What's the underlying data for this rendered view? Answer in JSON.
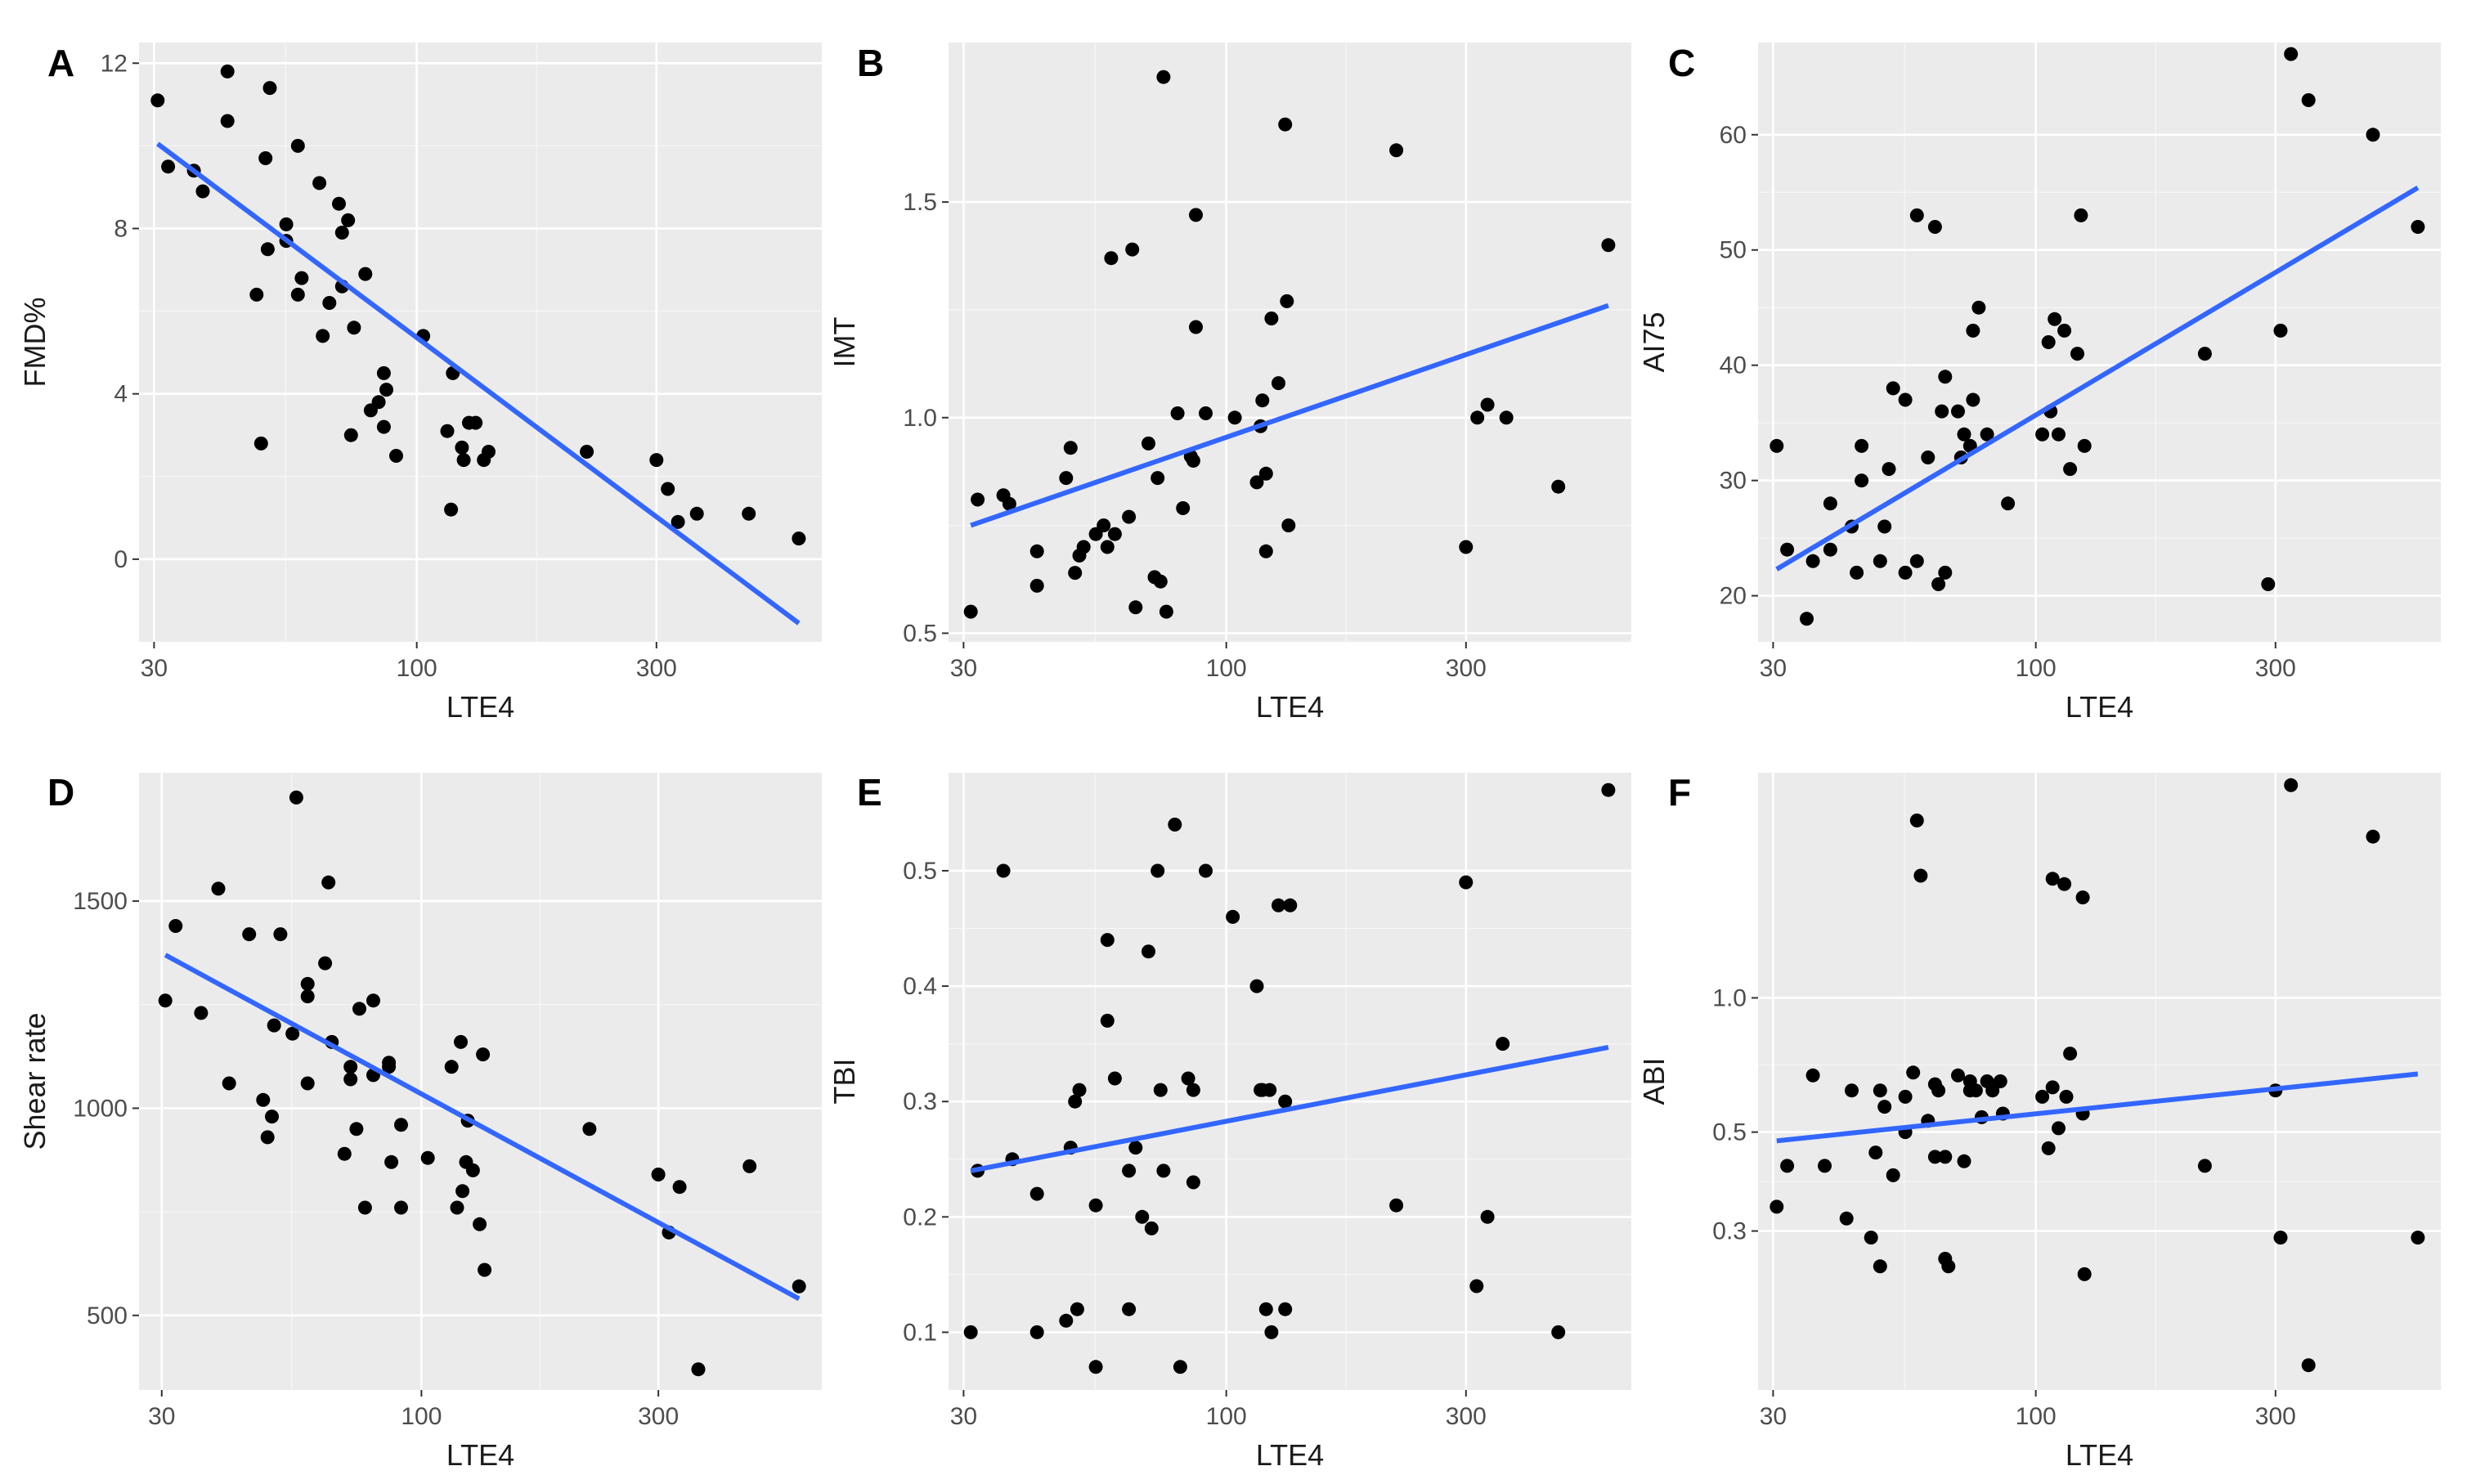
{
  "figure": {
    "background": "#ffffff",
    "panel_bg": "#ebebeb",
    "grid_major": "#ffffff",
    "point_color": "#000000",
    "line_color": "#3366ff"
  },
  "chart_data": [
    {
      "type": "scatter",
      "panel": "A",
      "x_scale": "log10",
      "xlabel": "LTE4",
      "ylabel": "FMD%",
      "xlim": [
        28,
        640
      ],
      "ylim": [
        -2,
        12.5
      ],
      "xticks": [
        30,
        100,
        300
      ],
      "xtick_labels": [
        "30",
        "100",
        "300"
      ],
      "yticks": [
        0,
        4,
        8,
        12
      ],
      "ytick_labels": [
        "0",
        "4",
        "8",
        "12"
      ],
      "x_minor": [
        54.8,
        173.2
      ],
      "points": [
        [
          30.5,
          11.1
        ],
        [
          32,
          9.5
        ],
        [
          36,
          9.4
        ],
        [
          37.5,
          8.9
        ],
        [
          42,
          11.8
        ],
        [
          42,
          10.6
        ],
        [
          48,
          6.4
        ],
        [
          49,
          2.8
        ],
        [
          50,
          9.7
        ],
        [
          50.5,
          7.5
        ],
        [
          51,
          11.4
        ],
        [
          55,
          8.1
        ],
        [
          55,
          7.7
        ],
        [
          58,
          10.0
        ],
        [
          58,
          6.4
        ],
        [
          59,
          6.8
        ],
        [
          64,
          9.1
        ],
        [
          65,
          5.4
        ],
        [
          67,
          6.2
        ],
        [
          70,
          8.6
        ],
        [
          71,
          7.9
        ],
        [
          71,
          6.6
        ],
        [
          73,
          8.2
        ],
        [
          74,
          3.0
        ],
        [
          75,
          5.6
        ],
        [
          79,
          6.9
        ],
        [
          81,
          3.6
        ],
        [
          84,
          3.8
        ],
        [
          86,
          4.5
        ],
        [
          86,
          3.2
        ],
        [
          87,
          4.1
        ],
        [
          91,
          2.5
        ],
        [
          103,
          5.4
        ],
        [
          115,
          3.1
        ],
        [
          118,
          4.5
        ],
        [
          117,
          1.2
        ],
        [
          123,
          2.7
        ],
        [
          124,
          2.4
        ],
        [
          127,
          3.3
        ],
        [
          131,
          3.3
        ],
        [
          136,
          2.4
        ],
        [
          139,
          2.6
        ],
        [
          218,
          2.6
        ],
        [
          300,
          2.4
        ],
        [
          316,
          1.7
        ],
        [
          331,
          0.9
        ],
        [
          361,
          1.1
        ],
        [
          458,
          1.1
        ],
        [
          576,
          0.5
        ]
      ],
      "trend": [
        [
          30.5,
          10.05
        ],
        [
          576,
          -1.55
        ]
      ]
    },
    {
      "type": "scatter",
      "panel": "B",
      "x_scale": "log10",
      "xlabel": "LTE4",
      "ylabel": "IMT",
      "xlim": [
        28,
        640
      ],
      "ylim": [
        0.48,
        1.87
      ],
      "xticks": [
        30,
        100,
        300
      ],
      "xtick_labels": [
        "30",
        "100",
        "300"
      ],
      "yticks": [
        0.5,
        1.0,
        1.5
      ],
      "ytick_labels": [
        "0.5",
        "1.0",
        "1.5"
      ],
      "x_minor": [
        54.8,
        173.2
      ],
      "points": [
        [
          31,
          0.55
        ],
        [
          32,
          0.81
        ],
        [
          36,
          0.82
        ],
        [
          37,
          0.8
        ],
        [
          42,
          0.69
        ],
        [
          42,
          0.61
        ],
        [
          48,
          0.86
        ],
        [
          49,
          0.93
        ],
        [
          50,
          0.64
        ],
        [
          51,
          0.68
        ],
        [
          52,
          0.7
        ],
        [
          55,
          0.73
        ],
        [
          57,
          0.75
        ],
        [
          58,
          0.7
        ],
        [
          59,
          1.37
        ],
        [
          60,
          0.73
        ],
        [
          64,
          0.77
        ],
        [
          65,
          1.39
        ],
        [
          66,
          0.56
        ],
        [
          70,
          0.94
        ],
        [
          72,
          0.63
        ],
        [
          73,
          0.86
        ],
        [
          74,
          0.62
        ],
        [
          75,
          1.79
        ],
        [
          76,
          0.55
        ],
        [
          80,
          1.01
        ],
        [
          82,
          0.79
        ],
        [
          85,
          0.91
        ],
        [
          86,
          0.9
        ],
        [
          87,
          1.21
        ],
        [
          87,
          1.47
        ],
        [
          91,
          1.01
        ],
        [
          104,
          1.0
        ],
        [
          115,
          0.85
        ],
        [
          117,
          0.98
        ],
        [
          118,
          1.04
        ],
        [
          120,
          0.87
        ],
        [
          120,
          0.69
        ],
        [
          123,
          1.23
        ],
        [
          127,
          1.08
        ],
        [
          131,
          1.68
        ],
        [
          132,
          1.27
        ],
        [
          133,
          0.75
        ],
        [
          218,
          1.62
        ],
        [
          300,
          0.7
        ],
        [
          316,
          1.0
        ],
        [
          331,
          1.03
        ],
        [
          361,
          1.0
        ],
        [
          458,
          0.84
        ],
        [
          576,
          1.4
        ]
      ],
      "trend": [
        [
          31,
          0.75
        ],
        [
          576,
          1.26
        ]
      ]
    },
    {
      "type": "scatter",
      "panel": "C",
      "x_scale": "log10",
      "xlabel": "LTE4",
      "ylabel": "AI75",
      "xlim": [
        28,
        640
      ],
      "ylim": [
        16,
        68
      ],
      "xticks": [
        30,
        100,
        300
      ],
      "xtick_labels": [
        "30",
        "100",
        "300"
      ],
      "yticks": [
        20,
        30,
        40,
        50,
        60
      ],
      "ytick_labels": [
        "20",
        "30",
        "40",
        "50",
        "60"
      ],
      "x_minor": [
        54.8,
        173.2
      ],
      "points": [
        [
          30.5,
          33
        ],
        [
          32,
          24
        ],
        [
          35,
          18
        ],
        [
          36,
          23
        ],
        [
          39,
          24
        ],
        [
          39,
          28
        ],
        [
          43,
          26
        ],
        [
          44,
          22
        ],
        [
          45,
          30
        ],
        [
          45,
          33
        ],
        [
          49,
          23
        ],
        [
          50,
          26
        ],
        [
          51,
          31
        ],
        [
          52,
          38
        ],
        [
          55,
          22
        ],
        [
          55,
          37
        ],
        [
          58,
          23
        ],
        [
          58,
          53
        ],
        [
          61,
          32
        ],
        [
          63,
          52
        ],
        [
          64,
          21
        ],
        [
          65,
          36
        ],
        [
          66,
          39
        ],
        [
          66,
          22
        ],
        [
          70,
          36
        ],
        [
          71,
          32
        ],
        [
          72,
          34
        ],
        [
          74,
          33
        ],
        [
          75,
          43
        ],
        [
          75,
          37
        ],
        [
          77,
          45
        ],
        [
          80,
          34
        ],
        [
          88,
          28
        ],
        [
          103,
          34
        ],
        [
          106,
          42
        ],
        [
          107,
          36
        ],
        [
          109,
          44
        ],
        [
          111,
          34
        ],
        [
          114,
          43
        ],
        [
          117,
          31
        ],
        [
          121,
          41
        ],
        [
          123,
          53
        ],
        [
          125,
          33
        ],
        [
          217,
          41
        ],
        [
          290,
          21
        ],
        [
          307,
          43
        ],
        [
          322,
          67
        ],
        [
          349,
          63
        ],
        [
          469,
          60
        ],
        [
          576,
          52
        ]
      ],
      "trend": [
        [
          30.5,
          22.3
        ],
        [
          576,
          55.4
        ]
      ]
    },
    {
      "type": "scatter",
      "panel": "D",
      "x_scale": "log10",
      "xlabel": "LTE4",
      "ylabel": "Shear rate",
      "xlim": [
        27,
        640
      ],
      "ylim": [
        320,
        1810
      ],
      "xticks": [
        30,
        100,
        300
      ],
      "xtick_labels": [
        "30",
        "100",
        "300"
      ],
      "yticks": [
        500,
        1000,
        1500
      ],
      "ytick_labels": [
        "500",
        "1000",
        "1500"
      ],
      "x_minor": [
        54.8,
        173.2
      ],
      "points": [
        [
          30.5,
          1260
        ],
        [
          32,
          1440
        ],
        [
          36,
          1230
        ],
        [
          39,
          1530
        ],
        [
          41,
          1060
        ],
        [
          45,
          1420
        ],
        [
          48,
          1020
        ],
        [
          49,
          930
        ],
        [
          50,
          980
        ],
        [
          50.5,
          1200
        ],
        [
          52,
          1420
        ],
        [
          55,
          1180
        ],
        [
          56,
          1750
        ],
        [
          59,
          1300
        ],
        [
          59,
          1270
        ],
        [
          59,
          1060
        ],
        [
          64,
          1350
        ],
        [
          65,
          1545
        ],
        [
          66,
          1160
        ],
        [
          70,
          890
        ],
        [
          72,
          1100
        ],
        [
          72,
          1070
        ],
        [
          74,
          950
        ],
        [
          75,
          1240
        ],
        [
          77,
          760
        ],
        [
          80,
          1260
        ],
        [
          80,
          1080
        ],
        [
          86,
          1110
        ],
        [
          86,
          1100
        ],
        [
          87,
          870
        ],
        [
          91,
          760
        ],
        [
          91,
          960
        ],
        [
          103,
          880
        ],
        [
          115,
          1100
        ],
        [
          118,
          760
        ],
        [
          120,
          1160
        ],
        [
          121,
          800
        ],
        [
          123,
          870
        ],
        [
          124,
          970
        ],
        [
          127,
          850
        ],
        [
          131,
          720
        ],
        [
          133,
          1130
        ],
        [
          134,
          610
        ],
        [
          218,
          950
        ],
        [
          300,
          840
        ],
        [
          315,
          700
        ],
        [
          331,
          810
        ],
        [
          361,
          370
        ],
        [
          458,
          860
        ],
        [
          576,
          570
        ]
      ],
      "trend": [
        [
          30.5,
          1370
        ],
        [
          576,
          540
        ]
      ]
    },
    {
      "type": "scatter",
      "panel": "E",
      "x_scale": "log10",
      "xlabel": "LTE4",
      "ylabel": "TBI",
      "xlim": [
        28,
        640
      ],
      "ylim": [
        0.05,
        0.585
      ],
      "xticks": [
        30,
        100,
        300
      ],
      "xtick_labels": [
        "30",
        "100",
        "300"
      ],
      "yticks": [
        0.1,
        0.2,
        0.3,
        0.4,
        0.5
      ],
      "ytick_labels": [
        "0.1",
        "0.2",
        "0.3",
        "0.4",
        "0.5"
      ],
      "x_minor": [
        54.8,
        173.2
      ],
      "points": [
        [
          31,
          0.1
        ],
        [
          32,
          0.24
        ],
        [
          36,
          0.5
        ],
        [
          37.5,
          0.25
        ],
        [
          42,
          0.1
        ],
        [
          42,
          0.22
        ],
        [
          48,
          0.11
        ],
        [
          49,
          0.26
        ],
        [
          50,
          0.3
        ],
        [
          51,
          0.31
        ],
        [
          50.5,
          0.12
        ],
        [
          55,
          0.21
        ],
        [
          55,
          0.07
        ],
        [
          58,
          0.44
        ],
        [
          58,
          0.37
        ],
        [
          60,
          0.32
        ],
        [
          64,
          0.24
        ],
        [
          64,
          0.12
        ],
        [
          66,
          0.26
        ],
        [
          68,
          0.2
        ],
        [
          70,
          0.43
        ],
        [
          71,
          0.19
        ],
        [
          73,
          0.5
        ],
        [
          74,
          0.31
        ],
        [
          75,
          0.24
        ],
        [
          79,
          0.54
        ],
        [
          81,
          0.07
        ],
        [
          84,
          0.32
        ],
        [
          86,
          0.31
        ],
        [
          86,
          0.23
        ],
        [
          91,
          0.5
        ],
        [
          103,
          0.46
        ],
        [
          115,
          0.4
        ],
        [
          117,
          0.31
        ],
        [
          118,
          0.31
        ],
        [
          120,
          0.12
        ],
        [
          122,
          0.31
        ],
        [
          123,
          0.1
        ],
        [
          127,
          0.47
        ],
        [
          131,
          0.3
        ],
        [
          131,
          0.12
        ],
        [
          134,
          0.47
        ],
        [
          218,
          0.21
        ],
        [
          300,
          0.49
        ],
        [
          315,
          0.14
        ],
        [
          331,
          0.2
        ],
        [
          355,
          0.35
        ],
        [
          458,
          0.1
        ],
        [
          576,
          0.57
        ]
      ],
      "trend": [
        [
          31,
          0.24
        ],
        [
          576,
          0.347
        ]
      ]
    },
    {
      "type": "scatter",
      "panel": "F",
      "x_scale": "log10",
      "y_scale": "log10",
      "xlabel": "LTE4",
      "ylabel": "ABI",
      "xlim": [
        28,
        640
      ],
      "ylim": [
        0.132,
        3.2
      ],
      "xticks": [
        30,
        100,
        300
      ],
      "xtick_labels": [
        "30",
        "100",
        "300"
      ],
      "yticks": [
        0.3,
        0.5,
        1.0
      ],
      "ytick_labels": [
        "0.3",
        "0.5",
        "1.0"
      ],
      "x_minor": [
        54.8,
        173.2
      ],
      "points": [
        [
          30.5,
          0.34
        ],
        [
          32,
          0.42
        ],
        [
          36,
          0.67
        ],
        [
          38,
          0.42
        ],
        [
          42,
          0.32
        ],
        [
          43,
          0.62
        ],
        [
          47,
          0.29
        ],
        [
          48,
          0.45
        ],
        [
          49,
          0.62
        ],
        [
          49,
          0.25
        ],
        [
          50,
          0.57
        ],
        [
          52,
          0.4
        ],
        [
          55,
          0.5
        ],
        [
          55,
          0.6
        ],
        [
          57,
          0.68
        ],
        [
          58,
          2.5
        ],
        [
          59,
          1.88
        ],
        [
          61,
          0.53
        ],
        [
          63,
          0.64
        ],
        [
          63,
          0.44
        ],
        [
          64,
          0.62
        ],
        [
          66,
          0.44
        ],
        [
          66,
          0.26
        ],
        [
          67,
          0.25
        ],
        [
          70,
          0.67
        ],
        [
          72,
          0.43
        ],
        [
          74,
          0.65
        ],
        [
          74,
          0.62
        ],
        [
          76,
          0.62
        ],
        [
          78,
          0.54
        ],
        [
          80,
          0.65
        ],
        [
          82,
          0.62
        ],
        [
          85,
          0.65
        ],
        [
          86,
          0.55
        ],
        [
          103,
          0.6
        ],
        [
          106,
          0.46
        ],
        [
          108,
          0.63
        ],
        [
          108,
          1.85
        ],
        [
          111,
          0.51
        ],
        [
          114,
          1.8
        ],
        [
          115,
          0.6
        ],
        [
          117,
          0.75
        ],
        [
          124,
          1.68
        ],
        [
          124,
          0.55
        ],
        [
          125,
          0.24
        ],
        [
          217,
          0.42
        ],
        [
          300,
          0.62
        ],
        [
          307,
          0.29
        ],
        [
          322,
          3.0
        ],
        [
          349,
          0.15
        ],
        [
          469,
          2.3
        ],
        [
          576,
          0.29
        ]
      ],
      "trend": [
        [
          30.5,
          0.478
        ],
        [
          576,
          0.675
        ]
      ]
    }
  ]
}
